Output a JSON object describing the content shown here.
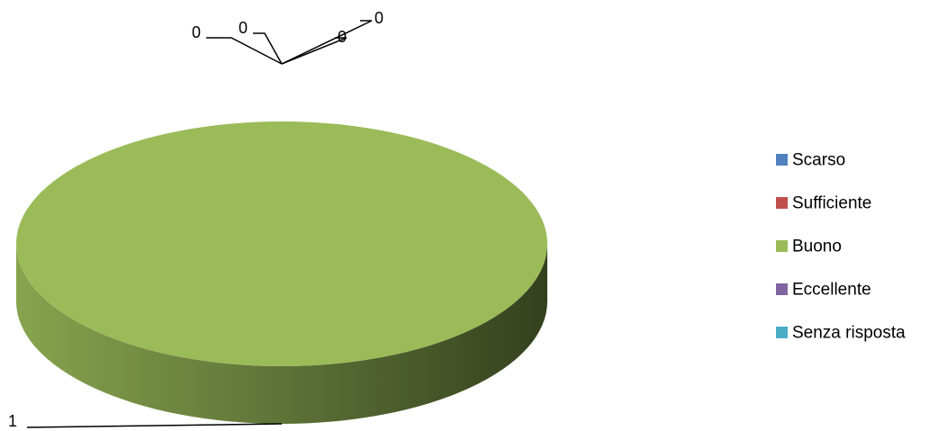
{
  "chart_data": {
    "type": "pie",
    "style": "3d",
    "title": "",
    "categories": [
      "Scarso",
      "Sufficiente",
      "Buono",
      "Eccellente",
      "Senza risposta"
    ],
    "values": [
      0,
      0,
      1,
      0,
      0
    ],
    "data_labels": [
      "0",
      "0",
      "1",
      "0",
      "0"
    ],
    "colors": [
      "#4F81BD",
      "#C0504D",
      "#9BBB59",
      "#8064A2",
      "#4BACC6"
    ],
    "legend": {
      "position": "right",
      "entries": [
        "Scarso",
        "Sufficiente",
        "Buono",
        "Eccellente",
        "Senza risposta"
      ]
    }
  }
}
